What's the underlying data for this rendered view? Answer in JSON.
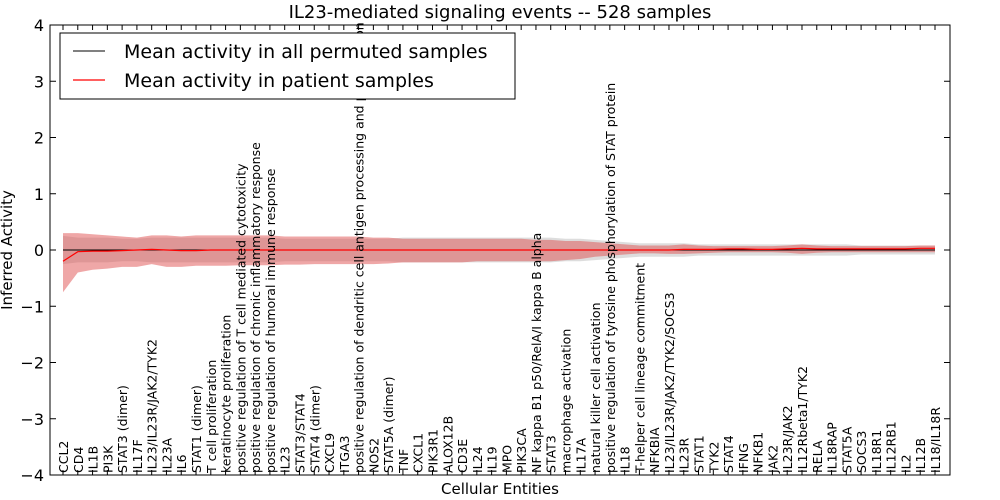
{
  "chart_data": {
    "type": "line",
    "title": "IL23-mediated signaling events -- 528 samples",
    "xlabel": "Cellular Entities",
    "ylabel": "Inferred Activity",
    "ylim": [
      -4,
      4
    ],
    "yticks": [
      -4,
      -3,
      -2,
      -1,
      0,
      1,
      2,
      3,
      4
    ],
    "grid": false,
    "legend_position": "top-left",
    "categories": [
      "CCL2",
      "CD4",
      "IL1B",
      "PI3K",
      "STAT3 (dimer)",
      "IL17F",
      "IL23/IL23R/JAK2/TYK2",
      "IL23A",
      "IL6",
      "STAT1 (dimer)",
      "T cell proliferation",
      "keratinocyte proliferation",
      "positive regulation of T cell mediated cytotoxicity",
      "positive regulation of chronic inflammatory response",
      "positive regulation of humoral immune response",
      "IL23",
      "STAT3/STAT4",
      "STAT4 (dimer)",
      "CXCL9",
      "ITGA3",
      "positive regulation of dendritic cell antigen processing and presentation",
      "NOS2",
      "STAT5A (dimer)",
      "TNF",
      "CXCL1",
      "PIK3R1",
      "ALOX12B",
      "CD3E",
      "IL24",
      "IL19",
      "MPO",
      "PIK3CA",
      "NF kappa B1 p50/RelA/I kappa B alpha",
      "STAT3",
      "macrophage activation",
      "IL17A",
      "natural killer cell activation",
      "positive regulation of tyrosine phosphorylation of STAT protein",
      "IL18",
      "T-helper cell lineage commitment",
      "NFKBIA",
      "IL23/IL23R/JAK2/TYK2/SOCS3",
      "IL23R",
      "STAT1",
      "TYK2",
      "STAT4",
      "IFNG",
      "NFKB1",
      "JAK2",
      "IL23R/JAK2",
      "IL12Rbeta1/TYK2",
      "RELA",
      "IL18RAP",
      "STAT5A",
      "SOCS3",
      "IL18R1",
      "IL12RB1",
      "IL2",
      "IL12B",
      "IL18/IL18R"
    ],
    "series": [
      {
        "name": "Mean activity in all permuted samples",
        "color": "#000000",
        "values": [
          0,
          0,
          0,
          0,
          0,
          0,
          0,
          0,
          0,
          0,
          0,
          0,
          0,
          0,
          0,
          0,
          0,
          0,
          0,
          0,
          0,
          0,
          0,
          0,
          0,
          0,
          0,
          0,
          0,
          0,
          0,
          0,
          0,
          0,
          0,
          0,
          0,
          0,
          0,
          0,
          0,
          0,
          0,
          0,
          0,
          0,
          0,
          0,
          0,
          0,
          0,
          0,
          0,
          0,
          0,
          0,
          0,
          0,
          0,
          0
        ]
      },
      {
        "name": "Mean activity in patient samples",
        "color": "#ff0000",
        "values": [
          -0.2,
          -0.03,
          -0.02,
          -0.02,
          -0.01,
          0,
          0.01,
          0,
          -0.01,
          -0.01,
          0,
          0,
          0,
          0,
          0,
          0,
          0,
          0,
          0,
          0,
          0,
          0,
          0,
          0,
          0,
          0,
          0,
          0,
          0,
          0,
          0,
          0,
          0,
          0,
          0,
          0,
          0,
          0,
          0,
          0,
          0,
          0,
          0.01,
          0.01,
          0.01,
          0.02,
          0.02,
          0.01,
          0.01,
          0.02,
          0.03,
          0.02,
          0.02,
          0.02,
          0.02,
          0.02,
          0.02,
          0.02,
          0.03,
          0.03
        ]
      }
    ],
    "patient_band": {
      "color": "#e05050",
      "upper": [
        0.3,
        0.3,
        0.28,
        0.26,
        0.24,
        0.22,
        0.26,
        0.26,
        0.24,
        0.26,
        0.26,
        0.26,
        0.26,
        0.26,
        0.26,
        0.24,
        0.24,
        0.24,
        0.24,
        0.24,
        0.24,
        0.22,
        0.22,
        0.2,
        0.2,
        0.2,
        0.2,
        0.2,
        0.2,
        0.2,
        0.2,
        0.2,
        0.18,
        0.18,
        0.16,
        0.16,
        0.14,
        0.12,
        0.1,
        0.08,
        0.08,
        0.08,
        0.1,
        0.08,
        0.07,
        0.07,
        0.07,
        0.07,
        0.07,
        0.08,
        0.1,
        0.08,
        0.07,
        0.07,
        0.07,
        0.07,
        0.07,
        0.07,
        0.08,
        0.08
      ],
      "lower": [
        -0.75,
        -0.4,
        -0.35,
        -0.33,
        -0.3,
        -0.3,
        -0.25,
        -0.3,
        -0.3,
        -0.28,
        -0.28,
        -0.28,
        -0.27,
        -0.27,
        -0.27,
        -0.26,
        -0.26,
        -0.25,
        -0.25,
        -0.25,
        -0.25,
        -0.25,
        -0.24,
        -0.22,
        -0.22,
        -0.22,
        -0.22,
        -0.22,
        -0.2,
        -0.2,
        -0.2,
        -0.2,
        -0.2,
        -0.2,
        -0.18,
        -0.16,
        -0.12,
        -0.1,
        -0.08,
        -0.06,
        -0.06,
        -0.07,
        -0.07,
        -0.06,
        -0.05,
        -0.04,
        -0.04,
        -0.04,
        -0.04,
        -0.05,
        -0.07,
        -0.05,
        -0.04,
        -0.04,
        -0.04,
        -0.04,
        -0.04,
        -0.04,
        -0.04,
        -0.04
      ]
    },
    "permuted_band": {
      "color": "#b4b4b4",
      "upper": [
        0.25,
        0.22,
        0.22,
        0.22,
        0.2,
        0.2,
        0.22,
        0.22,
        0.22,
        0.22,
        0.22,
        0.22,
        0.22,
        0.22,
        0.22,
        0.2,
        0.2,
        0.2,
        0.2,
        0.2,
        0.2,
        0.2,
        0.2,
        0.22,
        0.22,
        0.22,
        0.22,
        0.22,
        0.22,
        0.22,
        0.22,
        0.22,
        0.22,
        0.22,
        0.2,
        0.2,
        0.18,
        0.16,
        0.14,
        0.12,
        0.12,
        0.12,
        0.12,
        0.1,
        0.1,
        0.1,
        0.1,
        0.1,
        0.1,
        0.1,
        0.1,
        0.1,
        0.1,
        0.1,
        0.08,
        0.08,
        0.08,
        0.08,
        0.08,
        0.08
      ],
      "lower": [
        -0.25,
        -0.22,
        -0.22,
        -0.22,
        -0.2,
        -0.2,
        -0.22,
        -0.22,
        -0.22,
        -0.22,
        -0.22,
        -0.22,
        -0.22,
        -0.22,
        -0.22,
        -0.2,
        -0.2,
        -0.2,
        -0.2,
        -0.2,
        -0.2,
        -0.2,
        -0.2,
        -0.22,
        -0.22,
        -0.22,
        -0.22,
        -0.22,
        -0.22,
        -0.22,
        -0.22,
        -0.22,
        -0.22,
        -0.22,
        -0.2,
        -0.2,
        -0.18,
        -0.16,
        -0.14,
        -0.12,
        -0.12,
        -0.12,
        -0.12,
        -0.1,
        -0.1,
        -0.1,
        -0.1,
        -0.1,
        -0.1,
        -0.1,
        -0.1,
        -0.1,
        -0.1,
        -0.1,
        -0.08,
        -0.08,
        -0.08,
        -0.08,
        -0.08,
        -0.08
      ]
    }
  }
}
